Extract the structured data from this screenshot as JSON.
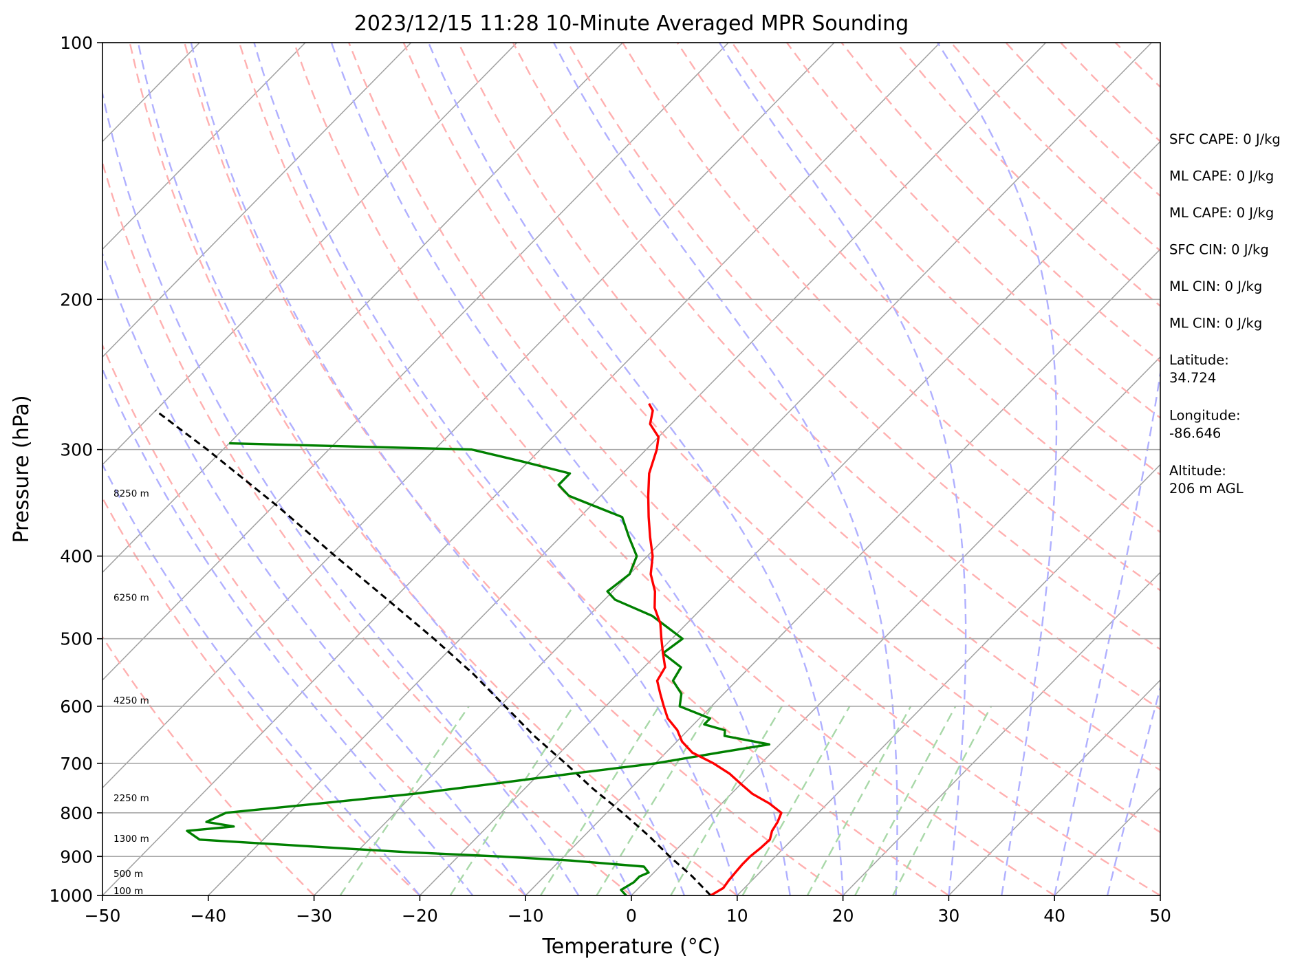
{
  "chart_data": {
    "type": "line",
    "title": "2023/12/15 11:28 10-Minute Averaged MPR Sounding",
    "xlabel": "Temperature (°C)",
    "ylabel": "Pressure (hPa)",
    "xlim": [
      -50,
      50
    ],
    "ylim": [
      1000,
      100
    ],
    "y_scale": "log",
    "grid": true,
    "x_ticks": [
      "−50",
      "−40",
      "−30",
      "−20",
      "−10",
      "0",
      "10",
      "20",
      "30",
      "40",
      "50"
    ],
    "y_ticks": [
      "100",
      "200",
      "300",
      "400",
      "500",
      "600",
      "700",
      "800",
      "900",
      "1000"
    ],
    "temperature_profile": {
      "color": "#ff0000",
      "pressure": [
        1000,
        980,
        960,
        940,
        920,
        900,
        880,
        860,
        840,
        820,
        800,
        780,
        760,
        740,
        720,
        700,
        680,
        660,
        640,
        620,
        600,
        580,
        560,
        540,
        520,
        500,
        480,
        460,
        440,
        420,
        400,
        380,
        360,
        340,
        320,
        300,
        290,
        280,
        270,
        265
      ],
      "temperature": [
        7.5,
        8.0,
        7.8,
        7.7,
        7.6,
        7.6,
        7.8,
        7.9,
        7.3,
        7.0,
        6.5,
        4.5,
        2.0,
        0.0,
        -2.0,
        -4.5,
        -7.5,
        -9.5,
        -11.0,
        -13.0,
        -14.5,
        -16.0,
        -17.5,
        -18.0,
        -19.5,
        -21.0,
        -22.5,
        -24.5,
        -26.0,
        -28.0,
        -29.5,
        -31.5,
        -33.5,
        -35.5,
        -37.5,
        -39.0,
        -40.0,
        -42.0,
        -43.0,
        -44.0
      ]
    },
    "dewpoint_profile": {
      "color": "#008000",
      "pressure": [
        1000,
        985,
        965,
        950,
        940,
        925,
        910,
        900,
        890,
        880,
        860,
        840,
        830,
        820,
        800,
        780,
        760,
        740,
        720,
        700,
        680,
        665,
        650,
        640,
        630,
        620,
        600,
        580,
        560,
        540,
        520,
        500,
        470,
        450,
        440,
        420,
        400,
        380,
        360,
        340,
        330,
        320,
        310,
        300,
        295
      ],
      "dewpoint": [
        -0.5,
        -1.5,
        -1.0,
        -1.0,
        -0.5,
        -1.5,
        -9.0,
        -16.0,
        -25.0,
        -32.0,
        -46.0,
        -48.0,
        -44.0,
        -47.0,
        -46.0,
        -38.0,
        -30.0,
        -23.5,
        -17.0,
        -10.0,
        -5.0,
        -1.0,
        -6.0,
        -6.5,
        -9.0,
        -9.0,
        -13.0,
        -14.0,
        -16.0,
        -16.5,
        -19.5,
        -19.0,
        -24.0,
        -29.0,
        -30.5,
        -30.0,
        -31.0,
        -33.5,
        -36.0,
        -43.0,
        -45.0,
        -45.0,
        -50.5,
        -56.5,
        -80.0
      ]
    },
    "parcel_profile": {
      "color": "#000000",
      "style": "dashed",
      "pressure": [
        1000,
        950,
        900,
        850,
        800,
        750,
        700,
        650,
        600,
        550,
        500,
        450,
        400,
        350,
        300,
        270
      ],
      "temperature": [
        7.5,
        4.0,
        0.0,
        -4.0,
        -8.5,
        -13.5,
        -18.5,
        -24.0,
        -29.5,
        -35.5,
        -42.5,
        -50.5,
        -59.5,
        -69.5,
        -81.5,
        -90.0
      ]
    },
    "height_labels": [
      {
        "pressure": 1000,
        "text": "100 m"
      },
      {
        "pressure": 955,
        "text": "500 m"
      },
      {
        "pressure": 868,
        "text": "1300 m"
      },
      {
        "pressure": 778,
        "text": "2250 m"
      },
      {
        "pressure": 598,
        "text": "4250 m"
      },
      {
        "pressure": 453,
        "text": "6250 m"
      },
      {
        "pressure": 342,
        "text": "8250 m"
      }
    ],
    "background_lines": {
      "isotherm_color": "#a0a0a0",
      "dry_adiabat_color": "#ffb0b0",
      "moist_adiabat_color": "#b0b0ff",
      "mixing_ratio_color": "#a8d8a8"
    }
  },
  "info_panel": [
    "SFC CAPE: 0 J/kg",
    "ML CAPE: 0 J/kg",
    "ML CAPE: 0 J/kg",
    "SFC CIN: 0 J/kg",
    "ML CIN: 0 J/kg",
    "ML CIN: 0 J/kg",
    [
      "Latitude:",
      "34.724"
    ],
    [
      "Longitude:",
      "-86.646"
    ],
    [
      "Altitude:",
      "206 m AGL"
    ]
  ]
}
